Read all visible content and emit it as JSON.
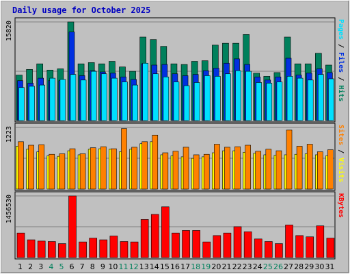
{
  "title": "Daily usage for October 2025",
  "colors": {
    "background": "#c0c0c0",
    "title_text": "#0000c0",
    "hits": "#00805c",
    "files": "#0030e0",
    "pages": "#00e0ff",
    "visits": "#ffff00",
    "sites": "#ff8000",
    "kbytes": "#ff0000",
    "weekend_label": "#00805c",
    "weekday_label": "#000000"
  },
  "chart_data": [
    {
      "type": "bar",
      "panel": "top",
      "y_max_label": "15820",
      "ylim": [
        0,
        15820
      ],
      "categories": [
        "1",
        "2",
        "3",
        "4",
        "5",
        "6",
        "7",
        "8",
        "9",
        "10",
        "11",
        "12",
        "13",
        "14",
        "15",
        "16",
        "17",
        "18",
        "19",
        "20",
        "21",
        "22",
        "23",
        "24",
        "25",
        "26",
        "27",
        "28",
        "29",
        "30",
        "31"
      ],
      "weekend_days": [
        "4",
        "5",
        "11",
        "12",
        "18",
        "19",
        "25",
        "26"
      ],
      "right_labels": [
        {
          "text": "Pages",
          "color": "#00e0ff"
        },
        {
          "text": " / ",
          "color": "#000000"
        },
        {
          "text": "Files",
          "color": "#0030e0"
        },
        {
          "text": " / ",
          "color": "#000000"
        },
        {
          "text": "Hits",
          "color": "#00805c"
        }
      ],
      "series": [
        {
          "name": "Hits",
          "color": "#00805c",
          "values": [
            7300,
            8200,
            9100,
            8100,
            8300,
            15820,
            9100,
            9300,
            9100,
            9500,
            8600,
            7900,
            13400,
            13000,
            11900,
            9100,
            9000,
            9500,
            9600,
            12100,
            12400,
            12400,
            13800,
            7600,
            7100,
            7700,
            13400,
            9100,
            9100,
            10800,
            8900
          ]
        },
        {
          "name": "Files",
          "color": "#0030e0",
          "values": [
            6400,
            6000,
            6800,
            6400,
            6400,
            14200,
            7200,
            8000,
            7800,
            7600,
            7000,
            6600,
            9100,
            8900,
            9000,
            7500,
            7200,
            7400,
            8000,
            8400,
            9200,
            9900,
            9000,
            7000,
            6500,
            7000,
            10000,
            7300,
            7600,
            8300,
            7700
          ]
        },
        {
          "name": "Pages",
          "color": "#00e0ff",
          "values": [
            5300,
            5500,
            5700,
            6800,
            6600,
            7400,
            6500,
            7900,
            7500,
            6800,
            6200,
            5700,
            9200,
            7500,
            7000,
            6200,
            5600,
            6100,
            7200,
            7100,
            7500,
            8000,
            7900,
            6100,
            6000,
            6200,
            7100,
            6800,
            6500,
            7400,
            6700
          ]
        }
      ]
    },
    {
      "type": "bar",
      "panel": "middle",
      "y_max_label": "1223",
      "ylim": [
        0,
        1223
      ],
      "categories": [
        "1",
        "2",
        "3",
        "4",
        "5",
        "6",
        "7",
        "8",
        "9",
        "10",
        "11",
        "12",
        "13",
        "14",
        "15",
        "16",
        "17",
        "18",
        "19",
        "20",
        "21",
        "22",
        "23",
        "24",
        "25",
        "26",
        "27",
        "28",
        "29",
        "30",
        "31"
      ],
      "right_labels": [
        {
          "text": "Sites",
          "color": "#ff8000"
        },
        {
          "text": " / ",
          "color": "#000000"
        },
        {
          "text": "Visits",
          "color": "#ffff00"
        }
      ],
      "series": [
        {
          "name": "Visits",
          "color": "#ffff00",
          "values": [
            850,
            790,
            740,
            660,
            650,
            760,
            680,
            790,
            800,
            790,
            740,
            790,
            900,
            940,
            680,
            660,
            640,
            610,
            640,
            720,
            760,
            760,
            730,
            710,
            680,
            670,
            680,
            690,
            700,
            680,
            660
          ]
        },
        {
          "name": "Sites",
          "color": "#ff8000",
          "values": [
            940,
            870,
            880,
            690,
            700,
            800,
            700,
            820,
            840,
            800,
            1200,
            830,
            940,
            1070,
            720,
            750,
            830,
            680,
            690,
            890,
            830,
            840,
            870,
            750,
            790,
            760,
            1170,
            850,
            890,
            740,
            780
          ]
        }
      ]
    },
    {
      "type": "bar",
      "panel": "bottom",
      "y_max_label": "1456530",
      "ylim": [
        0,
        1456530
      ],
      "categories": [
        "1",
        "2",
        "3",
        "4",
        "5",
        "6",
        "7",
        "8",
        "9",
        "10",
        "11",
        "12",
        "13",
        "14",
        "15",
        "16",
        "17",
        "18",
        "19",
        "20",
        "21",
        "22",
        "23",
        "24",
        "25",
        "26",
        "27",
        "28",
        "29",
        "30",
        "31"
      ],
      "right_labels": [
        {
          "text": "KBytes",
          "color": "#ff0000"
        }
      ],
      "series": [
        {
          "name": "KBytes",
          "color": "#ff0000",
          "values": [
            580000,
            420000,
            390000,
            380000,
            330000,
            1456530,
            370000,
            460000,
            420000,
            510000,
            380000,
            370000,
            900000,
            1020000,
            1200000,
            580000,
            640000,
            640000,
            370000,
            520000,
            580000,
            730000,
            610000,
            440000,
            380000,
            330000,
            770000,
            520000,
            490000,
            750000,
            460000
          ]
        }
      ]
    }
  ]
}
